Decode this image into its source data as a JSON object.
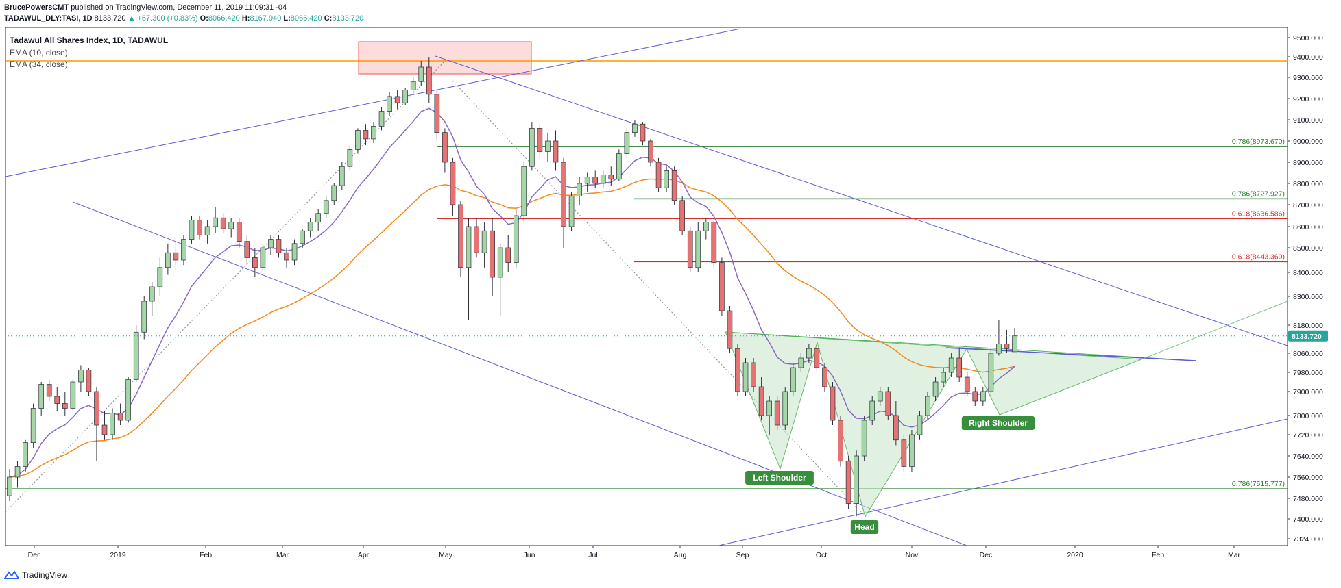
{
  "header": {
    "publisher": "BrucePowersCMT",
    "published_text": " published on TradingView.com, December 11, 2019 11:09:31 -04",
    "symbol": "TADAWUL_DLY:TASI, 1D",
    "last": "8133.720",
    "change": "▲ +67.300 (+0.83%)",
    "o_label": "O:",
    "o": "8066.420",
    "h_label": "H:",
    "h": "8167.940",
    "l_label": "L:",
    "l": "8066.420",
    "c_label": "C:",
    "c": "8133.720"
  },
  "legend": {
    "title": "Tadawul All Shares Index, 1D, TADAWUL",
    "ema10": "EMA (10, close)",
    "ema34": "EMA (34, close)"
  },
  "footer": {
    "brand": "TradingView"
  },
  "colors": {
    "up": "#26a69a",
    "down": "#ef5350",
    "candle_up": "#a5d6a7",
    "candle_down": "#e57373",
    "ema10": "#7e57c2",
    "ema34": "#f57c00",
    "trend": "#5b5bd6",
    "fib_green": "#2e7d32",
    "fib_red": "#d32f2f",
    "pattern_fill": "#c8e6c9",
    "resistance": "#ff9800"
  },
  "chart_data": {
    "type": "candlestick",
    "x_ticks": [
      "Dec",
      "2019",
      "Feb",
      "Mar",
      "Apr",
      "May",
      "Jun",
      "Jul",
      "Aug",
      "Sep",
      "Oct",
      "Nov",
      "Dec",
      "2020",
      "Feb",
      "Mar"
    ],
    "y_ticks": [
      "9500.000",
      "9400.000",
      "9300.000",
      "9200.000",
      "9100.000",
      "9000.000",
      "8900.000",
      "8800.000",
      "8700.000",
      "8600.000",
      "8500.000",
      "8400.000",
      "8300.000",
      "8180.000",
      "8060.000",
      "7980.000",
      "7900.000",
      "7800.000",
      "7720.000",
      "7640.000",
      "7560.000",
      "7480.000",
      "7400.000",
      "7324.000"
    ],
    "last_price": "8133.720",
    "fib_levels": [
      {
        "label": "0.786(8973.670)",
        "value": 8973.67,
        "color": "green"
      },
      {
        "label": "0.786(8727.927)",
        "value": 8727.927,
        "color": "green"
      },
      {
        "label": "0.618(8636.586)",
        "value": 8636.586,
        "color": "red"
      },
      {
        "label": "0.618(8443.369)",
        "value": 8443.369,
        "color": "red"
      },
      {
        "label": "0.786(7515.777)",
        "value": 7515.777,
        "color": "green"
      }
    ],
    "resistance": 9380,
    "pattern_labels": {
      "left": "Left Shoulder",
      "head": "Head",
      "right": "Right Shoulder"
    },
    "ohlc": [
      {
        "o": 7490,
        "h": 7590,
        "l": 7470,
        "c": 7560
      },
      {
        "o": 7560,
        "h": 7620,
        "l": 7520,
        "c": 7600
      },
      {
        "o": 7600,
        "h": 7700,
        "l": 7580,
        "c": 7690
      },
      {
        "o": 7690,
        "h": 7850,
        "l": 7670,
        "c": 7830
      },
      {
        "o": 7830,
        "h": 7940,
        "l": 7800,
        "c": 7930
      },
      {
        "o": 7930,
        "h": 7950,
        "l": 7860,
        "c": 7880
      },
      {
        "o": 7880,
        "h": 7920,
        "l": 7820,
        "c": 7850
      },
      {
        "o": 7850,
        "h": 7900,
        "l": 7800,
        "c": 7830
      },
      {
        "o": 7830,
        "h": 7950,
        "l": 7820,
        "c": 7940
      },
      {
        "o": 7940,
        "h": 8010,
        "l": 7900,
        "c": 7990
      },
      {
        "o": 7990,
        "h": 8000,
        "l": 7880,
        "c": 7900
      },
      {
        "o": 7900,
        "h": 7920,
        "l": 7620,
        "c": 7760
      },
      {
        "o": 7760,
        "h": 7820,
        "l": 7700,
        "c": 7720
      },
      {
        "o": 7720,
        "h": 7830,
        "l": 7700,
        "c": 7810
      },
      {
        "o": 7810,
        "h": 7850,
        "l": 7760,
        "c": 7780
      },
      {
        "o": 7780,
        "h": 7960,
        "l": 7770,
        "c": 7950
      },
      {
        "o": 7950,
        "h": 8180,
        "l": 7940,
        "c": 8150
      },
      {
        "o": 8150,
        "h": 8300,
        "l": 8120,
        "c": 8280
      },
      {
        "o": 8280,
        "h": 8360,
        "l": 8220,
        "c": 8340
      },
      {
        "o": 8340,
        "h": 8460,
        "l": 8300,
        "c": 8420
      },
      {
        "o": 8420,
        "h": 8520,
        "l": 8390,
        "c": 8480
      },
      {
        "o": 8480,
        "h": 8530,
        "l": 8410,
        "c": 8450
      },
      {
        "o": 8450,
        "h": 8560,
        "l": 8430,
        "c": 8540
      },
      {
        "o": 8540,
        "h": 8650,
        "l": 8520,
        "c": 8630
      },
      {
        "o": 8630,
        "h": 8650,
        "l": 8540,
        "c": 8560
      },
      {
        "o": 8560,
        "h": 8630,
        "l": 8520,
        "c": 8600
      },
      {
        "o": 8600,
        "h": 8690,
        "l": 8570,
        "c": 8640
      },
      {
        "o": 8640,
        "h": 8660,
        "l": 8570,
        "c": 8590
      },
      {
        "o": 8590,
        "h": 8640,
        "l": 8550,
        "c": 8620
      },
      {
        "o": 8620,
        "h": 8640,
        "l": 8500,
        "c": 8530
      },
      {
        "o": 8530,
        "h": 8560,
        "l": 8430,
        "c": 8460
      },
      {
        "o": 8460,
        "h": 8500,
        "l": 8380,
        "c": 8420
      },
      {
        "o": 8420,
        "h": 8520,
        "l": 8400,
        "c": 8500
      },
      {
        "o": 8500,
        "h": 8560,
        "l": 8470,
        "c": 8540
      },
      {
        "o": 8540,
        "h": 8560,
        "l": 8460,
        "c": 8480
      },
      {
        "o": 8480,
        "h": 8500,
        "l": 8420,
        "c": 8450
      },
      {
        "o": 8450,
        "h": 8540,
        "l": 8430,
        "c": 8520
      },
      {
        "o": 8520,
        "h": 8590,
        "l": 8500,
        "c": 8580
      },
      {
        "o": 8580,
        "h": 8640,
        "l": 8550,
        "c": 8620
      },
      {
        "o": 8620,
        "h": 8680,
        "l": 8580,
        "c": 8660
      },
      {
        "o": 8660,
        "h": 8740,
        "l": 8640,
        "c": 8720
      },
      {
        "o": 8720,
        "h": 8800,
        "l": 8700,
        "c": 8790
      },
      {
        "o": 8790,
        "h": 8900,
        "l": 8770,
        "c": 8880
      },
      {
        "o": 8880,
        "h": 8980,
        "l": 8860,
        "c": 8960
      },
      {
        "o": 8960,
        "h": 9060,
        "l": 8940,
        "c": 9050
      },
      {
        "o": 9050,
        "h": 9080,
        "l": 8980,
        "c": 9010
      },
      {
        "o": 9010,
        "h": 9090,
        "l": 8990,
        "c": 9070
      },
      {
        "o": 9070,
        "h": 9160,
        "l": 9050,
        "c": 9140
      },
      {
        "o": 9140,
        "h": 9230,
        "l": 9120,
        "c": 9210
      },
      {
        "o": 9210,
        "h": 9240,
        "l": 9150,
        "c": 9180
      },
      {
        "o": 9180,
        "h": 9250,
        "l": 9170,
        "c": 9240
      },
      {
        "o": 9240,
        "h": 9300,
        "l": 9220,
        "c": 9280
      },
      {
        "o": 9280,
        "h": 9380,
        "l": 9260,
        "c": 9350
      },
      {
        "o": 9350,
        "h": 9400,
        "l": 9180,
        "c": 9220
      },
      {
        "o": 9220,
        "h": 9240,
        "l": 9000,
        "c": 9040
      },
      {
        "o": 9040,
        "h": 9060,
        "l": 8850,
        "c": 8900
      },
      {
        "o": 8900,
        "h": 8920,
        "l": 8650,
        "c": 8700
      },
      {
        "o": 8700,
        "h": 8720,
        "l": 8380,
        "c": 8420
      },
      {
        "o": 8420,
        "h": 8640,
        "l": 8200,
        "c": 8600
      },
      {
        "o": 8600,
        "h": 8640,
        "l": 8460,
        "c": 8480
      },
      {
        "o": 8480,
        "h": 8620,
        "l": 8420,
        "c": 8580
      },
      {
        "o": 8580,
        "h": 8640,
        "l": 8300,
        "c": 8380
      },
      {
        "o": 8380,
        "h": 8520,
        "l": 8220,
        "c": 8500
      },
      {
        "o": 8500,
        "h": 8560,
        "l": 8400,
        "c": 8440
      },
      {
        "o": 8440,
        "h": 8680,
        "l": 8420,
        "c": 8650
      },
      {
        "o": 8650,
        "h": 8900,
        "l": 8620,
        "c": 8880
      },
      {
        "o": 8880,
        "h": 9090,
        "l": 8860,
        "c": 9060
      },
      {
        "o": 9060,
        "h": 9080,
        "l": 8920,
        "c": 8950
      },
      {
        "o": 8950,
        "h": 9040,
        "l": 8900,
        "c": 9000
      },
      {
        "o": 9000,
        "h": 9050,
        "l": 8860,
        "c": 8900
      },
      {
        "o": 8900,
        "h": 8920,
        "l": 8500,
        "c": 8600
      },
      {
        "o": 8600,
        "h": 8760,
        "l": 8580,
        "c": 8740
      },
      {
        "o": 8740,
        "h": 8830,
        "l": 8700,
        "c": 8800
      },
      {
        "o": 8800,
        "h": 8850,
        "l": 8760,
        "c": 8830
      },
      {
        "o": 8830,
        "h": 8860,
        "l": 8780,
        "c": 8800
      },
      {
        "o": 8800,
        "h": 8860,
        "l": 8780,
        "c": 8840
      },
      {
        "o": 8840,
        "h": 8880,
        "l": 8790,
        "c": 8820
      },
      {
        "o": 8820,
        "h": 8960,
        "l": 8810,
        "c": 8940
      },
      {
        "o": 8940,
        "h": 9060,
        "l": 8920,
        "c": 9040
      },
      {
        "o": 9040,
        "h": 9100,
        "l": 9020,
        "c": 9080
      },
      {
        "o": 9080,
        "h": 9090,
        "l": 8980,
        "c": 9000
      },
      {
        "o": 9000,
        "h": 9010,
        "l": 8880,
        "c": 8900
      },
      {
        "o": 8900,
        "h": 8920,
        "l": 8760,
        "c": 8780
      },
      {
        "o": 8780,
        "h": 8880,
        "l": 8760,
        "c": 8860
      },
      {
        "o": 8860,
        "h": 8880,
        "l": 8700,
        "c": 8720
      },
      {
        "o": 8720,
        "h": 8740,
        "l": 8560,
        "c": 8580
      },
      {
        "o": 8580,
        "h": 8600,
        "l": 8400,
        "c": 8420
      },
      {
        "o": 8420,
        "h": 8620,
        "l": 8400,
        "c": 8580
      },
      {
        "o": 8580,
        "h": 8640,
        "l": 8540,
        "c": 8620
      },
      {
        "o": 8620,
        "h": 8640,
        "l": 8420,
        "c": 8440
      },
      {
        "o": 8440,
        "h": 8460,
        "l": 8220,
        "c": 8240
      },
      {
        "o": 8240,
        "h": 8260,
        "l": 8060,
        "c": 8080
      },
      {
        "o": 8080,
        "h": 8100,
        "l": 7880,
        "c": 7900
      },
      {
        "o": 7900,
        "h": 8040,
        "l": 7880,
        "c": 8020
      },
      {
        "o": 8020,
        "h": 8040,
        "l": 7900,
        "c": 7920
      },
      {
        "o": 7920,
        "h": 7960,
        "l": 7780,
        "c": 7800
      },
      {
        "o": 7800,
        "h": 7880,
        "l": 7720,
        "c": 7860
      },
      {
        "o": 7860,
        "h": 7880,
        "l": 7740,
        "c": 7760
      },
      {
        "o": 7760,
        "h": 7920,
        "l": 7740,
        "c": 7900
      },
      {
        "o": 7900,
        "h": 8020,
        "l": 7880,
        "c": 8000
      },
      {
        "o": 8000,
        "h": 8060,
        "l": 7980,
        "c": 8040
      },
      {
        "o": 8040,
        "h": 8100,
        "l": 8020,
        "c": 8080
      },
      {
        "o": 8080,
        "h": 8100,
        "l": 7980,
        "c": 8000
      },
      {
        "o": 8000,
        "h": 8020,
        "l": 7900,
        "c": 7920
      },
      {
        "o": 7920,
        "h": 7940,
        "l": 7760,
        "c": 7780
      },
      {
        "o": 7780,
        "h": 7800,
        "l": 7600,
        "c": 7620
      },
      {
        "o": 7620,
        "h": 7640,
        "l": 7440,
        "c": 7460
      },
      {
        "o": 7460,
        "h": 7660,
        "l": 7410,
        "c": 7640
      },
      {
        "o": 7640,
        "h": 7800,
        "l": 7620,
        "c": 7780
      },
      {
        "o": 7780,
        "h": 7880,
        "l": 7760,
        "c": 7860
      },
      {
        "o": 7860,
        "h": 7920,
        "l": 7840,
        "c": 7900
      },
      {
        "o": 7900,
        "h": 7920,
        "l": 7780,
        "c": 7800
      },
      {
        "o": 7800,
        "h": 7860,
        "l": 7680,
        "c": 7700
      },
      {
        "o": 7700,
        "h": 7720,
        "l": 7580,
        "c": 7600
      },
      {
        "o": 7600,
        "h": 7740,
        "l": 7580,
        "c": 7720
      },
      {
        "o": 7720,
        "h": 7820,
        "l": 7700,
        "c": 7800
      },
      {
        "o": 7800,
        "h": 7900,
        "l": 7780,
        "c": 7880
      },
      {
        "o": 7880,
        "h": 7960,
        "l": 7860,
        "c": 7940
      },
      {
        "o": 7940,
        "h": 8000,
        "l": 7920,
        "c": 7980
      },
      {
        "o": 7980,
        "h": 8060,
        "l": 7960,
        "c": 8040
      },
      {
        "o": 8040,
        "h": 8080,
        "l": 7940,
        "c": 7960
      },
      {
        "o": 7960,
        "h": 7980,
        "l": 7880,
        "c": 7900
      },
      {
        "o": 7900,
        "h": 7920,
        "l": 7840,
        "c": 7860
      },
      {
        "o": 7860,
        "h": 7920,
        "l": 7840,
        "c": 7900
      },
      {
        "o": 7900,
        "h": 8080,
        "l": 7880,
        "c": 8060
      },
      {
        "o": 8060,
        "h": 8200,
        "l": 8050,
        "c": 8100
      },
      {
        "o": 8100,
        "h": 8160,
        "l": 8060,
        "c": 8080
      },
      {
        "o": 8066,
        "h": 8168,
        "l": 8066,
        "c": 8134
      }
    ]
  }
}
